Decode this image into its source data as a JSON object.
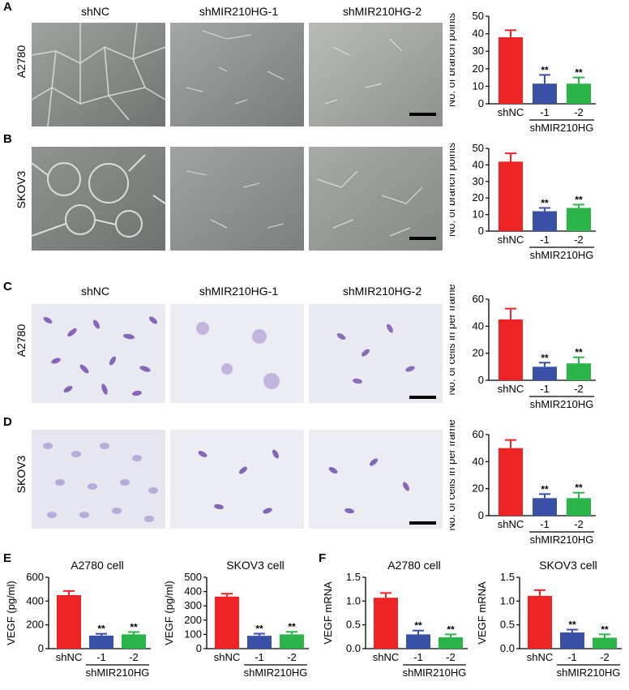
{
  "panel_labels": {
    "A": "A",
    "B": "B",
    "C": "C",
    "D": "D",
    "E": "E",
    "F": "F"
  },
  "column_titles": {
    "c1": "shNC",
    "c2": "shMIR210HG-1",
    "c3": "shMIR210HG-2"
  },
  "row_labels": {
    "A": "A2780",
    "B": "SKOV3",
    "C": "A2780",
    "D": "SKOV3"
  },
  "colors": {
    "shNC": "#ee2424",
    "sh1": "#3a4fa6",
    "sh2": "#2bb44a",
    "tube_bg": "#8a8f8b",
    "stain_bg": "#e8e8f0",
    "stain_cell": "#7a4fb0"
  },
  "chart_data": [
    {
      "id": "A",
      "type": "bar",
      "ylabel": "No. of branch points",
      "ylim": [
        0,
        50
      ],
      "yticks": [
        0,
        10,
        20,
        30,
        40,
        50
      ],
      "categories": [
        "shNC",
        "-1",
        "-2"
      ],
      "group_label": "shMIR210HG",
      "values": [
        38,
        11.5,
        11.5
      ],
      "errors": [
        4,
        5,
        3.5
      ],
      "sig": [
        "",
        "**",
        "**"
      ]
    },
    {
      "id": "B",
      "type": "bar",
      "ylabel": "No. of branch points",
      "ylim": [
        0,
        50
      ],
      "yticks": [
        0,
        10,
        20,
        30,
        40,
        50
      ],
      "categories": [
        "shNC",
        "-1",
        "-2"
      ],
      "group_label": "shMIR210HG",
      "values": [
        42,
        12,
        14
      ],
      "errors": [
        5,
        2,
        2
      ],
      "sig": [
        "",
        "**",
        "**"
      ]
    },
    {
      "id": "C",
      "type": "bar",
      "ylabel": "No. of cells in per frame",
      "ylim": [
        0,
        60
      ],
      "yticks": [
        0,
        20,
        40,
        60
      ],
      "categories": [
        "shNC",
        "-1",
        "-2"
      ],
      "group_label": "shMIR210HG",
      "values": [
        45,
        10,
        12.5
      ],
      "errors": [
        8,
        3,
        4.5
      ],
      "sig": [
        "",
        "**",
        "**"
      ]
    },
    {
      "id": "D",
      "type": "bar",
      "ylabel": "No. of cells in per frame",
      "ylim": [
        0,
        60
      ],
      "yticks": [
        0,
        20,
        40,
        60
      ],
      "categories": [
        "shNC",
        "-1",
        "-2"
      ],
      "group_label": "shMIR210HG",
      "values": [
        50,
        13,
        13
      ],
      "errors": [
        6,
        3,
        4
      ],
      "sig": [
        "",
        "**",
        "**"
      ]
    },
    {
      "id": "E1",
      "type": "bar",
      "title": "A2780 cell",
      "ylabel": "VEGF (pg/ml)",
      "ylim": [
        0,
        600
      ],
      "yticks": [
        0,
        200,
        400,
        600
      ],
      "categories": [
        "shNC",
        "-1",
        "-2"
      ],
      "group_label": "shMIR210HG",
      "values": [
        450,
        110,
        120
      ],
      "errors": [
        35,
        15,
        20
      ],
      "sig": [
        "",
        "**",
        "**"
      ]
    },
    {
      "id": "E2",
      "type": "bar",
      "title": "SKOV3 cell",
      "ylabel": "VEGF (pg/ml)",
      "ylim": [
        0,
        500
      ],
      "yticks": [
        0,
        100,
        200,
        300,
        400,
        500
      ],
      "categories": [
        "shNC",
        "-1",
        "-2"
      ],
      "group_label": "shMIR210HG",
      "values": [
        365,
        90,
        100
      ],
      "errors": [
        20,
        15,
        18
      ],
      "sig": [
        "",
        "**",
        "**"
      ]
    },
    {
      "id": "F1",
      "type": "bar",
      "title": "A2780 cell",
      "ylabel": "VEGF mRNA",
      "ylim": [
        0,
        1.5
      ],
      "yticks": [
        0.0,
        0.5,
        1.0,
        1.5
      ],
      "tick_decimals": 1,
      "categories": [
        "shNC",
        "-1",
        "-2"
      ],
      "group_label": "shMIR210HG",
      "values": [
        1.07,
        0.3,
        0.24
      ],
      "errors": [
        0.1,
        0.08,
        0.06
      ],
      "sig": [
        "",
        "**",
        "**"
      ]
    },
    {
      "id": "F2",
      "type": "bar",
      "title": "SKOV3 cell",
      "ylabel": "VEGF mRNA",
      "ylim": [
        0,
        1.5
      ],
      "yticks": [
        0.0,
        0.5,
        1.0,
        1.5
      ],
      "tick_decimals": 1,
      "categories": [
        "shNC",
        "-1",
        "-2"
      ],
      "group_label": "shMIR210HG",
      "values": [
        1.11,
        0.34,
        0.23
      ],
      "errors": [
        0.12,
        0.06,
        0.07
      ],
      "sig": [
        "",
        "**",
        "**"
      ]
    }
  ]
}
